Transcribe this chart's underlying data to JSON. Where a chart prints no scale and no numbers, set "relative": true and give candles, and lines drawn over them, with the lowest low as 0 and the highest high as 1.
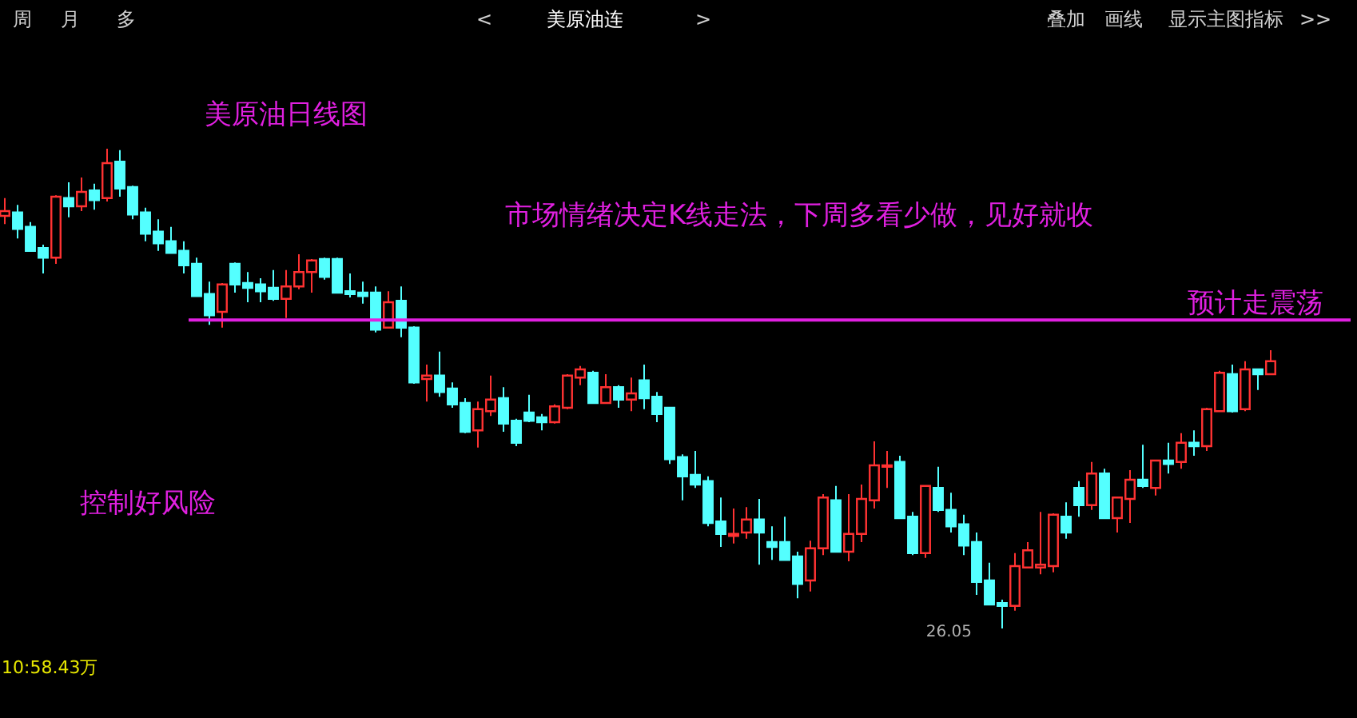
{
  "chart_data": {
    "type": "candlestick",
    "relative": true,
    "title": "美原油日线图",
    "categories": [
      null,
      null,
      null,
      null,
      null,
      null,
      null,
      null,
      null,
      null,
      null,
      null,
      null,
      null,
      null,
      null,
      null,
      null,
      null,
      null,
      null,
      null,
      null,
      null,
      null,
      null,
      null,
      null,
      null,
      null,
      null,
      null,
      null,
      null,
      null,
      null,
      null,
      null,
      null,
      null,
      null,
      null,
      null,
      null,
      null,
      null,
      null,
      null,
      null,
      null,
      null,
      null,
      null,
      null,
      null,
      null,
      null,
      null,
      null,
      null,
      null,
      null,
      null,
      null,
      null,
      null,
      null,
      null,
      null,
      null,
      null,
      null,
      null,
      null,
      null,
      null,
      null,
      null,
      null,
      null,
      null,
      null,
      null,
      null,
      null,
      null,
      null,
      null,
      null,
      null,
      null,
      null,
      null,
      null,
      null,
      null,
      null,
      null,
      null,
      null
    ],
    "ohlc": [
      [
        0.86,
        0.897,
        0.843,
        0.87
      ],
      [
        0.867,
        0.883,
        0.813,
        0.833
      ],
      [
        0.837,
        0.847,
        0.787,
        0.787
      ],
      [
        0.793,
        0.8,
        0.74,
        0.773
      ],
      [
        0.773,
        0.903,
        0.76,
        0.9
      ],
      [
        0.897,
        0.93,
        0.857,
        0.88
      ],
      [
        0.88,
        0.94,
        0.87,
        0.91
      ],
      [
        0.913,
        0.927,
        0.873,
        0.893
      ],
      [
        0.897,
        1.0,
        0.89,
        0.97
      ],
      [
        0.973,
        0.997,
        0.9,
        0.917
      ],
      [
        0.92,
        0.923,
        0.853,
        0.863
      ],
      [
        0.867,
        0.877,
        0.807,
        0.823
      ],
      [
        0.827,
        0.853,
        0.787,
        0.803
      ],
      [
        0.807,
        0.837,
        0.783,
        0.783
      ],
      [
        0.787,
        0.807,
        0.74,
        0.757
      ],
      [
        0.76,
        0.773,
        0.693,
        0.693
      ],
      [
        0.697,
        0.723,
        0.633,
        0.653
      ],
      [
        0.66,
        0.72,
        0.627,
        0.717
      ],
      [
        0.76,
        0.763,
        0.7,
        0.717
      ],
      [
        0.72,
        0.743,
        0.68,
        0.71
      ],
      [
        0.717,
        0.73,
        0.68,
        0.703
      ],
      [
        0.71,
        0.747,
        0.683,
        0.687
      ],
      [
        0.687,
        0.747,
        0.647,
        0.713
      ],
      [
        0.713,
        0.78,
        0.707,
        0.743
      ],
      [
        0.743,
        0.77,
        0.7,
        0.767
      ],
      [
        0.77,
        0.773,
        0.727,
        0.733
      ],
      [
        0.77,
        0.773,
        0.7,
        0.7
      ],
      [
        0.703,
        0.74,
        0.69,
        0.697
      ],
      [
        0.7,
        0.723,
        0.677,
        0.693
      ],
      [
        0.7,
        0.713,
        0.617,
        0.623
      ],
      [
        0.627,
        0.703,
        0.627,
        0.68
      ],
      [
        0.683,
        0.713,
        0.607,
        0.627
      ],
      [
        0.627,
        0.63,
        0.51,
        0.513
      ],
      [
        0.52,
        0.55,
        0.473,
        0.527
      ],
      [
        0.527,
        0.577,
        0.483,
        0.493
      ],
      [
        0.5,
        0.513,
        0.46,
        0.467
      ],
      [
        0.47,
        0.48,
        0.407,
        0.41
      ],
      [
        0.413,
        0.473,
        0.377,
        0.457
      ],
      [
        0.453,
        0.527,
        0.443,
        0.477
      ],
      [
        0.48,
        0.503,
        0.41,
        0.427
      ],
      [
        0.433,
        0.437,
        0.38,
        0.387
      ],
      [
        0.45,
        0.487,
        0.43,
        0.433
      ],
      [
        0.44,
        0.447,
        0.413,
        0.43
      ],
      [
        0.43,
        0.467,
        0.427,
        0.463
      ],
      [
        0.46,
        0.53,
        0.457,
        0.527
      ],
      [
        0.523,
        0.547,
        0.507,
        0.54
      ],
      [
        0.533,
        0.537,
        0.47,
        0.47
      ],
      [
        0.47,
        0.53,
        0.47,
        0.503
      ],
      [
        0.503,
        0.507,
        0.46,
        0.477
      ],
      [
        0.477,
        0.523,
        0.453,
        0.49
      ],
      [
        0.517,
        0.55,
        0.457,
        0.48
      ],
      [
        0.483,
        0.493,
        0.43,
        0.447
      ],
      [
        0.46,
        0.46,
        0.343,
        0.353
      ],
      [
        0.357,
        0.363,
        0.267,
        0.317
      ],
      [
        0.32,
        0.37,
        0.293,
        0.3
      ],
      [
        0.307,
        0.317,
        0.213,
        0.22
      ],
      [
        0.223,
        0.273,
        0.17,
        0.197
      ],
      [
        0.193,
        0.25,
        0.177,
        0.197
      ],
      [
        0.2,
        0.253,
        0.187,
        0.227
      ],
      [
        0.227,
        0.27,
        0.133,
        0.2
      ],
      [
        0.18,
        0.213,
        0.143,
        0.17
      ],
      [
        0.18,
        0.233,
        0.143,
        0.143
      ],
      [
        0.15,
        0.16,
        0.063,
        0.093
      ],
      [
        0.1,
        0.183,
        0.077,
        0.167
      ],
      [
        0.167,
        0.28,
        0.153,
        0.273
      ],
      [
        0.267,
        0.297,
        0.16,
        0.16
      ],
      [
        0.16,
        0.28,
        0.14,
        0.197
      ],
      [
        0.197,
        0.3,
        0.18,
        0.27
      ],
      [
        0.267,
        0.39,
        0.25,
        0.34
      ],
      [
        0.337,
        0.37,
        0.293,
        0.34
      ],
      [
        0.347,
        0.36,
        0.23,
        0.23
      ],
      [
        0.233,
        0.243,
        0.153,
        0.157
      ],
      [
        0.157,
        0.297,
        0.147,
        0.297
      ],
      [
        0.293,
        0.337,
        0.243,
        0.247
      ],
      [
        0.247,
        0.283,
        0.2,
        0.213
      ],
      [
        0.217,
        0.237,
        0.153,
        0.173
      ],
      [
        0.18,
        0.2,
        0.07,
        0.097
      ],
      [
        0.1,
        0.137,
        0.05,
        0.05
      ],
      [
        0.053,
        0.06,
        0.0,
        0.047
      ],
      [
        0.047,
        0.157,
        0.037,
        0.13
      ],
      [
        0.127,
        0.18,
        0.127,
        0.163
      ],
      [
        0.127,
        0.243,
        0.113,
        0.133
      ],
      [
        0.13,
        0.24,
        0.117,
        0.237
      ],
      [
        0.233,
        0.263,
        0.187,
        0.2
      ],
      [
        0.293,
        0.307,
        0.233,
        0.257
      ],
      [
        0.257,
        0.347,
        0.247,
        0.323
      ],
      [
        0.323,
        0.333,
        0.23,
        0.23
      ],
      [
        0.23,
        0.273,
        0.2,
        0.273
      ],
      [
        0.27,
        0.33,
        0.22,
        0.31
      ],
      [
        0.31,
        0.383,
        0.293,
        0.297
      ],
      [
        0.293,
        0.35,
        0.277,
        0.35
      ],
      [
        0.35,
        0.387,
        0.323,
        0.343
      ],
      [
        0.347,
        0.407,
        0.333,
        0.387
      ],
      [
        0.387,
        0.413,
        0.36,
        0.38
      ],
      [
        0.38,
        0.46,
        0.37,
        0.457
      ],
      [
        0.453,
        0.537,
        0.453,
        0.533
      ],
      [
        0.53,
        0.55,
        0.45,
        0.453
      ],
      [
        0.457,
        0.557,
        0.453,
        0.54
      ],
      [
        0.54,
        0.54,
        0.497,
        0.53
      ],
      [
        0.53,
        0.58,
        0.53,
        0.557
      ]
    ],
    "ref_lines": [
      {
        "axis": "y",
        "value": 0.643,
        "label": "预计走震荡",
        "color": "#e020e0"
      }
    ],
    "annotations": [
      "市场情绪决定K线走法，下周多看少做，见好就收",
      "控制好风险",
      "26.05",
      "10:58.43万",
      "周",
      "月",
      "多",
      "<",
      "美原油连",
      ">",
      "叠加",
      "画线",
      "显示主图指标",
      ">>"
    ]
  }
}
